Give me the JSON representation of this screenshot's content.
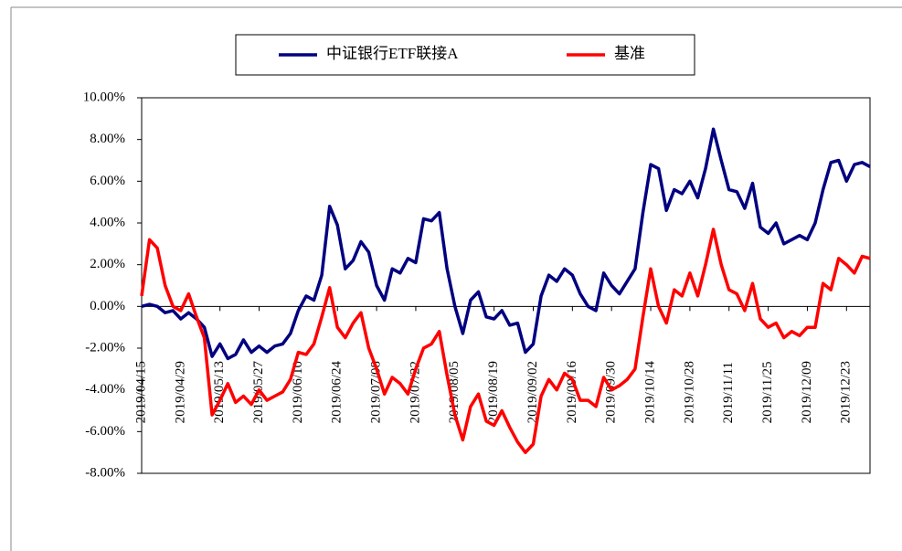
{
  "chart_data": {
    "type": "line",
    "legend": "top",
    "categories": [
      "2019/04/15",
      null,
      null,
      null,
      null,
      "2019/04/29",
      null,
      null,
      null,
      null,
      "2019/05/13",
      null,
      null,
      null,
      null,
      "2019/05/27",
      null,
      null,
      null,
      null,
      "2019/06/10",
      null,
      null,
      null,
      null,
      "2019/06/24",
      null,
      null,
      null,
      null,
      "2019/07/08",
      null,
      null,
      null,
      null,
      "2019/07/22",
      null,
      null,
      null,
      null,
      "2019/08/05",
      null,
      null,
      null,
      null,
      "2019/08/19",
      null,
      null,
      null,
      null,
      "2019/09/02",
      null,
      null,
      null,
      null,
      "2019/09/16",
      null,
      null,
      null,
      null,
      "2019/09/30",
      null,
      null,
      null,
      null,
      "2019/10/14",
      null,
      null,
      null,
      null,
      "2019/10/28",
      null,
      null,
      null,
      null,
      "2019/11/11",
      null,
      null,
      null,
      null,
      "2019/11/25",
      null,
      null,
      null,
      null,
      "2019/12/09",
      null,
      null,
      null,
      null,
      "2019/12/23",
      null,
      null,
      null
    ],
    "series": [
      {
        "name": "中证银行ETF联接A",
        "color": "#000080",
        "values": [
          0.0,
          0.1,
          0.0,
          -0.3,
          -0.2,
          -0.6,
          -0.3,
          -0.6,
          -1.0,
          -2.4,
          -1.8,
          -2.5,
          -2.3,
          -1.6,
          -2.2,
          -1.9,
          -2.2,
          -1.9,
          -1.8,
          -1.3,
          -0.2,
          0.5,
          0.3,
          1.5,
          4.8,
          3.9,
          1.8,
          2.2,
          3.1,
          2.6,
          1.0,
          0.3,
          1.8,
          1.6,
          2.3,
          2.1,
          4.2,
          4.1,
          4.5,
          1.8,
          0.0,
          -1.3,
          0.3,
          0.7,
          -0.5,
          -0.6,
          -0.2,
          -0.9,
          -0.8,
          -2.2,
          -1.8,
          0.5,
          1.5,
          1.2,
          1.8,
          1.5,
          0.6,
          0.0,
          -0.2,
          1.6,
          1.0,
          0.6,
          1.2,
          1.8,
          4.5,
          6.8,
          6.6,
          4.6,
          5.6,
          5.4,
          6.0,
          5.2,
          6.6,
          8.5,
          7.0,
          5.6,
          5.5,
          4.7,
          5.9,
          3.8,
          3.5,
          4.0,
          3.0,
          3.2,
          3.4,
          3.2,
          4.0,
          5.6,
          6.9,
          7.0,
          6.0,
          6.8,
          6.9,
          6.7
        ]
      },
      {
        "name": "基准",
        "color": "#ff0000",
        "values": [
          0.5,
          3.2,
          2.8,
          1.0,
          0.0,
          -0.2,
          0.6,
          -0.5,
          -1.5,
          -5.2,
          -4.5,
          -3.7,
          -4.6,
          -4.3,
          -4.7,
          -4.0,
          -4.5,
          -4.3,
          -4.1,
          -3.5,
          -2.2,
          -2.3,
          -1.8,
          -0.5,
          0.9,
          -1.0,
          -1.5,
          -0.8,
          -0.3,
          -2.0,
          -3.0,
          -4.2,
          -3.4,
          -3.7,
          -4.2,
          -3.0,
          -2.0,
          -1.8,
          -1.2,
          -3.3,
          -5.2,
          -6.4,
          -4.8,
          -4.2,
          -5.5,
          -5.7,
          -5.0,
          -5.8,
          -6.5,
          -7.0,
          -6.6,
          -4.3,
          -3.5,
          -4.0,
          -3.2,
          -3.5,
          -4.5,
          -4.5,
          -4.8,
          -3.4,
          -4.0,
          -3.8,
          -3.5,
          -3.0,
          -0.5,
          1.8,
          0.0,
          -0.8,
          0.8,
          0.5,
          1.6,
          0.5,
          2.0,
          3.7,
          2.0,
          0.8,
          0.6,
          -0.2,
          1.1,
          -0.6,
          -1.0,
          -0.8,
          -1.5,
          -1.2,
          -1.4,
          -1.0,
          -1.0,
          1.1,
          0.8,
          2.3,
          2.0,
          1.6,
          2.4,
          2.3
        ]
      }
    ],
    "ylim": [
      -8,
      10
    ],
    "yticks": [
      {
        "value": 10,
        "label": "10.00%"
      },
      {
        "value": 8,
        "label": "8.00%"
      },
      {
        "value": 6,
        "label": "6.00%"
      },
      {
        "value": 4,
        "label": "4.00%"
      },
      {
        "value": 2,
        "label": "2.00%"
      },
      {
        "value": 0,
        "label": "0.00%"
      },
      {
        "value": -2,
        "label": "-2.00%"
      },
      {
        "value": -4,
        "label": "-4.00%"
      },
      {
        "value": -6,
        "label": "-6.00%"
      },
      {
        "value": -8,
        "label": "-8.00%"
      }
    ]
  }
}
